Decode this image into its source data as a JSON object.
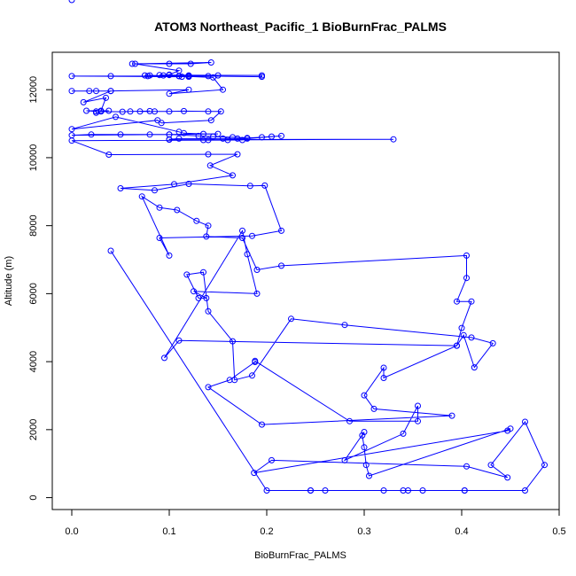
{
  "chart_data": {
    "type": "line",
    "title": "ATOM3 Northeast_Pacific_1 BioBurnFrac_PALMS",
    "xlabel": "BioBurnFrac_PALMS",
    "ylabel": "Altitude (m)",
    "xlim": [
      -0.02,
      0.5
    ],
    "ylim": [
      -350,
      13100
    ],
    "xticks": [
      0,
      0.1,
      0.2,
      0.3,
      0.4,
      0.5
    ],
    "xtick_labels": [
      "0.0",
      "0.1",
      "0.2",
      "0.3",
      "0.4",
      "0.5"
    ],
    "yticks": [
      0,
      2000,
      4000,
      6000,
      8000,
      10000,
      12000
    ],
    "ytick_labels": [
      "0",
      "2000",
      "4000",
      "6000",
      "8000",
      "10000",
      "12000"
    ],
    "grid": false,
    "color": "#0000ff",
    "series": [
      {
        "x": [
          0.062,
          0.1,
          0.122,
          0.143,
          0.065,
          0.11,
          0.1,
          0.094,
          0.12,
          0.12,
          0.113,
          0.0,
          0.04,
          0.078,
          0.11,
          0.12,
          0.14,
          0.15,
          0.1,
          0.12,
          0.09,
          0.195,
          0.195,
          0.08,
          0.075,
          0.11,
          0.145,
          0.155,
          0.1,
          0.12,
          0.04,
          0.0,
          0.025,
          0.018,
          0.04,
          0.012,
          0.035,
          0.03,
          0.038,
          0.015,
          0.025,
          0.025,
          0.03,
          0.052,
          0.06,
          0.08,
          0.07,
          0.085,
          0.1,
          0.115,
          0.14,
          0.153,
          0.143,
          0.092,
          0.088,
          0.0,
          0.045,
          0.11,
          0.115,
          0.135,
          0.15,
          0.1,
          0.0,
          0.02,
          0.05,
          0.08,
          0.1,
          0.13,
          0.145,
          0.165,
          0.18,
          0.195,
          0.205,
          0.215,
          0.18,
          0.17,
          0.155,
          0.11,
          0.1,
          0.1,
          0.33,
          0.135,
          0.14,
          0.16,
          0.175,
          0.0,
          0.038,
          0.14,
          0.17,
          0.142,
          0.165,
          0.105,
          0.05,
          0.085,
          0.12,
          0.183,
          0.198,
          0.215,
          0.185,
          0.09,
          0.1,
          0.072,
          0.09,
          0.108,
          0.128,
          0.14,
          0.138,
          0.175,
          0.19,
          0.215,
          0.405,
          0.405,
          0.395,
          0.41,
          0.4,
          0.395,
          0.11,
          0.095,
          0.175,
          0.18,
          0.19,
          0.125,
          0.138,
          0.13,
          0.118,
          0.135,
          0.14,
          0.165,
          0.167,
          0.185,
          0.225,
          0.28,
          0.41,
          0.432,
          0.413,
          0.402,
          0.395,
          0.32,
          0.32,
          0.3,
          0.31,
          0.39,
          0.195,
          0.14,
          0.162,
          0.188,
          0.188,
          0.285,
          0.355,
          0.355,
          0.34,
          0.28,
          0.3,
          0.298,
          0.3,
          0.302,
          0.305,
          0.45,
          0.447,
          0.187,
          0.205,
          0.405,
          0.447,
          0.43,
          0.465,
          0.485,
          0.465,
          0.403,
          0.403,
          0.345,
          0.245,
          0.245,
          0.32,
          0.36,
          0.34,
          0.26,
          0.2,
          0.04,
          0.0
        ]
      }
    ]
  }
}
